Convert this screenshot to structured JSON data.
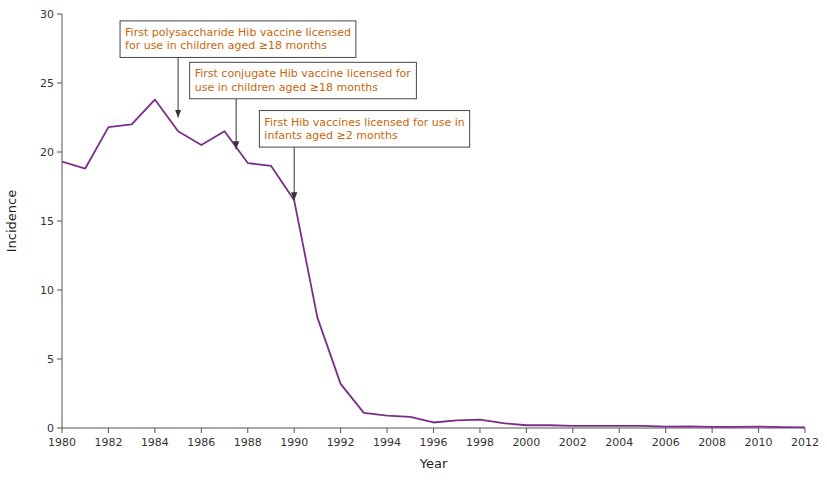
{
  "chart_data": {
    "type": "line",
    "x_label": "Year",
    "y_label": "Incidence",
    "x": [
      1980,
      1981,
      1982,
      1983,
      1984,
      1985,
      1986,
      1987,
      1988,
      1989,
      1990,
      1991,
      1992,
      1993,
      1994,
      1995,
      1996,
      1997,
      1998,
      1999,
      2000,
      2001,
      2002,
      2003,
      2004,
      2005,
      2006,
      2007,
      2008,
      2009,
      2010,
      2011,
      2012
    ],
    "values": [
      19.3,
      18.8,
      21.8,
      22.0,
      23.8,
      21.5,
      20.5,
      21.5,
      19.2,
      19.0,
      16.5,
      8.0,
      3.2,
      1.1,
      0.9,
      0.8,
      0.4,
      0.55,
      0.6,
      0.35,
      0.2,
      0.2,
      0.15,
      0.15,
      0.15,
      0.15,
      0.1,
      0.12,
      0.08,
      0.08,
      0.1,
      0.07,
      0.05
    ],
    "color": "#7B2D8B",
    "xlim": [
      1980,
      2012
    ],
    "ylim": [
      0,
      30
    ],
    "xticks": [
      1980,
      1982,
      1984,
      1986,
      1988,
      1990,
      1992,
      1994,
      1996,
      1998,
      2000,
      2002,
      2004,
      2006,
      2008,
      2010,
      2012
    ],
    "yticks": [
      0,
      5,
      10,
      15,
      20,
      25,
      30
    ],
    "grid": false,
    "annotations": [
      {
        "text": "First polysaccharide Hib vaccine licensed\nfor use in children aged ≥18 months",
        "x": 1985.0,
        "y": 22.5,
        "text_x": 1982.5,
        "text_y": 29.5,
        "color": "#C8660A"
      },
      {
        "text": "First conjugate Hib vaccine licensed for\nuse in children aged ≥18 months",
        "x": 1987.5,
        "y": 20.2,
        "text_x": 1985.5,
        "text_y": 26.5,
        "color": "#C8660A"
      },
      {
        "text": "First Hib vaccines licensed for use in\ninfants aged ≥2 months",
        "x": 1990.0,
        "y": 16.5,
        "text_x": 1988.5,
        "text_y": 23.0,
        "color": "#C8660A"
      }
    ]
  }
}
